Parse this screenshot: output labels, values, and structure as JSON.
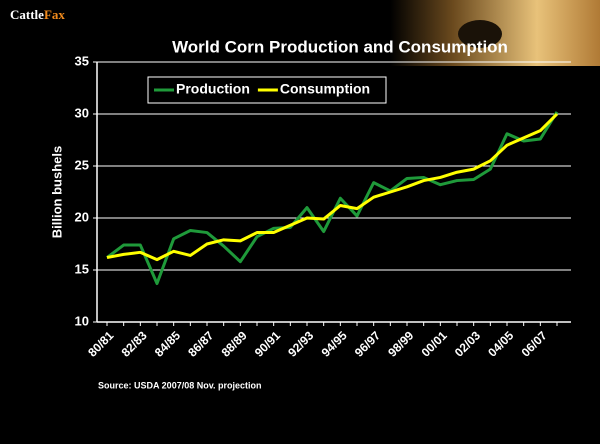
{
  "logo": {
    "part1": "Cattle",
    "part2": "Fax"
  },
  "chart_data": {
    "type": "line",
    "title": "World Corn Production and Consumption",
    "y_label": "Billion bushels",
    "note": "Source:  USDA 2007/08 Nov. projection",
    "categories": [
      "80/81",
      null,
      "82/83",
      null,
      "84/85",
      null,
      "86/87",
      null,
      "88/89",
      null,
      "90/91",
      null,
      "92/93",
      null,
      "94/95",
      null,
      "96/97",
      null,
      "98/99",
      null,
      "00/01",
      null,
      "02/03",
      null,
      "04/05",
      null,
      "06/07",
      null
    ],
    "series": [
      {
        "name": "Production",
        "color": "#1f9a3a",
        "values": [
          16.2,
          17.4,
          17.4,
          13.7,
          18.0,
          18.8,
          18.6,
          17.3,
          15.8,
          18.2,
          19.0,
          19.1,
          21.0,
          18.7,
          21.9,
          20.2,
          23.4,
          22.6,
          23.8,
          23.9,
          23.2,
          23.6,
          23.7,
          24.7,
          28.1,
          27.4,
          27.6,
          30.2
        ]
      },
      {
        "name": "Consumption",
        "color": "#ffff00",
        "values": [
          16.2,
          16.5,
          16.7,
          16.0,
          16.8,
          16.4,
          17.5,
          17.9,
          17.8,
          18.6,
          18.6,
          19.3,
          20.0,
          19.9,
          21.2,
          20.9,
          22.0,
          22.5,
          23.0,
          23.6,
          23.9,
          24.4,
          24.7,
          25.5,
          27.0,
          27.7,
          28.4,
          30.0
        ]
      }
    ],
    "ylim": [
      10,
      35
    ],
    "yticks": [
      10,
      15,
      20,
      25,
      30,
      35
    ],
    "grid": true,
    "legend": "upper left"
  }
}
